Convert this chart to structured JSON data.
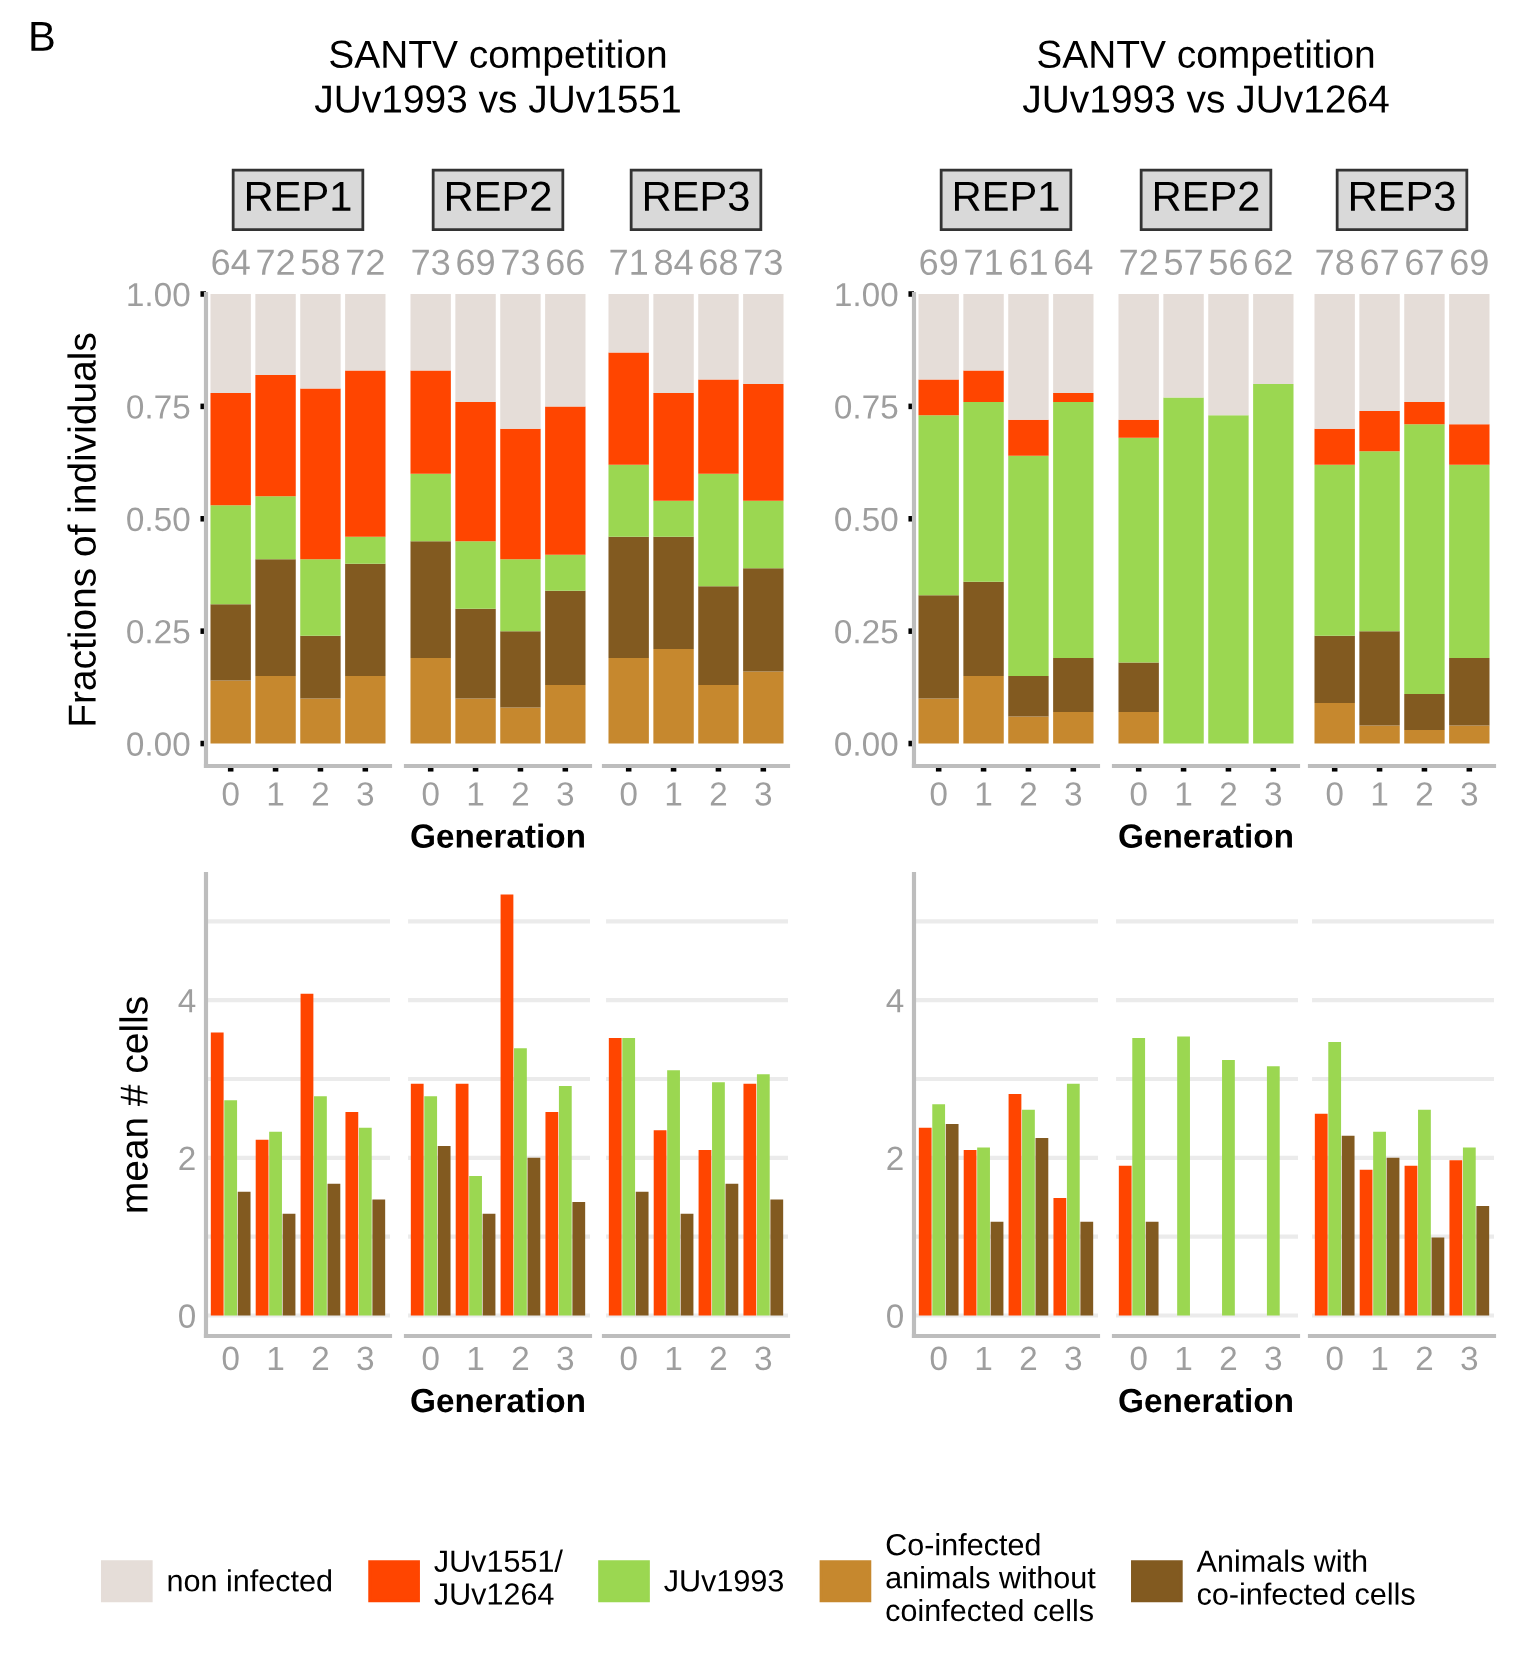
{
  "chart_data": [
    {
      "type": "bar",
      "stacked": true,
      "title": "REP1",
      "subtitle": "SANTV competition\nJUv1993 vs JUv1551",
      "ylabel": "Fractions of individuals",
      "categories": [
        "0",
        "1",
        "2",
        "3"
      ],
      "ylim": [
        -0.05,
        1
      ],
      "yticks": [
        {
          "value": 0,
          "label": "0.00"
        },
        {
          "value": 0.25,
          "label": "0.25"
        },
        {
          "value": 0.5,
          "label": "0.50"
        },
        {
          "value": 0.75,
          "label": "0.75"
        },
        {
          "value": 1,
          "label": "1.00"
        }
      ],
      "legend": "bottom",
      "annotations": [
        "64",
        "72",
        "58",
        "72",
        "B"
      ],
      "series": [
        {
          "name": "Co-infected\nanimals without\ncoinfected cells",
          "color": "#c6882e",
          "values": [
            0.14,
            0.15,
            0.1,
            0.15
          ]
        },
        {
          "name": "Animals with\nco-infected cells",
          "color": "#825a20",
          "values": [
            0.17,
            0.26,
            0.14,
            0.25
          ]
        },
        {
          "name": "JUv1993",
          "color": "#9bd751",
          "values": [
            0.22,
            0.14,
            0.17,
            0.06
          ]
        },
        {
          "name": "JUv1551/\nJUv1264",
          "color": "#ff4500",
          "values": [
            0.25,
            0.27,
            0.38,
            0.37
          ]
        },
        {
          "name": "non infected",
          "color": "#e5ddd8",
          "values": [
            0.22,
            0.18,
            0.21,
            0.17
          ]
        }
      ]
    },
    {
      "type": "bar",
      "stacked": true,
      "title": "REP2",
      "xlabel": "Generation",
      "categories": [
        "0",
        "1",
        "2",
        "3"
      ],
      "ylim": [
        -0.05,
        1
      ],
      "yticks": [
        0,
        0.25,
        0.5,
        0.75,
        1
      ],
      "tick_labels": "x",
      "annotations": [
        "73",
        "69",
        "73",
        "66"
      ],
      "series": [
        {
          "color": "#c6882e",
          "values": [
            0.19,
            0.1,
            0.08,
            0.13
          ]
        },
        {
          "color": "#825a20",
          "values": [
            0.26,
            0.2,
            0.17,
            0.21
          ]
        },
        {
          "color": "#9bd751",
          "values": [
            0.15,
            0.15,
            0.16,
            0.08
          ]
        },
        {
          "color": "#ff4500",
          "values": [
            0.23,
            0.31,
            0.29,
            0.33
          ]
        },
        {
          "color": "#e5ddd8",
          "values": [
            0.17,
            0.24,
            0.3,
            0.25
          ]
        }
      ]
    },
    {
      "type": "bar",
      "stacked": true,
      "title": "REP3",
      "categories": [
        "0",
        "1",
        "2",
        "3"
      ],
      "ylim": [
        -0.05,
        1
      ],
      "yticks": [
        0,
        0.25,
        0.5,
        0.75,
        1
      ],
      "tick_labels": "x",
      "annotations": [
        "71",
        "84",
        "68",
        "73"
      ],
      "series": [
        {
          "color": "#c6882e",
          "values": [
            0.19,
            0.21,
            0.13,
            0.16
          ]
        },
        {
          "color": "#825a20",
          "values": [
            0.27,
            0.25,
            0.22,
            0.23
          ]
        },
        {
          "color": "#9bd751",
          "values": [
            0.16,
            0.08,
            0.25,
            0.15
          ]
        },
        {
          "color": "#ff4500",
          "values": [
            0.25,
            0.24,
            0.21,
            0.26
          ]
        },
        {
          "color": "#e5ddd8",
          "values": [
            0.13,
            0.22,
            0.19,
            0.2
          ]
        }
      ]
    },
    {
      "type": "bar",
      "stacked": true,
      "title": "REP1",
      "subtitle": "SANTV competition\nJUv1993 vs JUv1264",
      "categories": [
        "0",
        "1",
        "2",
        "3"
      ],
      "ylim": [
        -0.05,
        1
      ],
      "yticks": [
        {
          "value": 0,
          "label": "0.00"
        },
        {
          "value": 0.25,
          "label": "0.25"
        },
        {
          "value": 0.5,
          "label": "0.50"
        },
        {
          "value": 0.75,
          "label": "0.75"
        },
        {
          "value": 1,
          "label": "1.00"
        }
      ],
      "annotations": [
        "69",
        "71",
        "61",
        "64"
      ],
      "series": [
        {
          "color": "#c6882e",
          "values": [
            0.1,
            0.15,
            0.06,
            0.07
          ]
        },
        {
          "color": "#825a20",
          "values": [
            0.23,
            0.21,
            0.09,
            0.12
          ]
        },
        {
          "color": "#9bd751",
          "values": [
            0.4,
            0.4,
            0.49,
            0.57
          ]
        },
        {
          "color": "#ff4500",
          "values": [
            0.08,
            0.07,
            0.08,
            0.02
          ]
        },
        {
          "color": "#e5ddd8",
          "values": [
            0.19,
            0.17,
            0.28,
            0.22
          ]
        }
      ]
    },
    {
      "type": "bar",
      "stacked": true,
      "title": "REP2",
      "xlabel": "Generation",
      "categories": [
        "0",
        "1",
        "2",
        "3"
      ],
      "ylim": [
        -0.05,
        1
      ],
      "yticks": [
        0,
        0.25,
        0.5,
        0.75,
        1
      ],
      "tick_labels": "x",
      "annotations": [
        "72",
        "57",
        "56",
        "62"
      ],
      "series": [
        {
          "color": "#c6882e",
          "values": [
            0.07,
            0,
            0,
            0
          ]
        },
        {
          "color": "#825a20",
          "values": [
            0.11,
            0,
            0,
            0
          ]
        },
        {
          "color": "#9bd751",
          "values": [
            0.5,
            0.77,
            0.73,
            0.8
          ]
        },
        {
          "color": "#ff4500",
          "values": [
            0.04,
            0,
            0,
            0
          ]
        },
        {
          "color": "#e5ddd8",
          "values": [
            0.28,
            0.23,
            0.27,
            0.2
          ]
        }
      ]
    },
    {
      "type": "bar",
      "stacked": true,
      "title": "REP3",
      "categories": [
        "0",
        "1",
        "2",
        "3"
      ],
      "ylim": [
        -0.05,
        1
      ],
      "yticks": [
        0,
        0.25,
        0.5,
        0.75,
        1
      ],
      "tick_labels": "x",
      "annotations": [
        "78",
        "67",
        "67",
        "69"
      ],
      "series": [
        {
          "color": "#c6882e",
          "values": [
            0.09,
            0.04,
            0.03,
            0.04
          ]
        },
        {
          "color": "#825a20",
          "values": [
            0.15,
            0.21,
            0.08,
            0.15
          ]
        },
        {
          "color": "#9bd751",
          "values": [
            0.38,
            0.4,
            0.6,
            0.43
          ]
        },
        {
          "color": "#ff4500",
          "values": [
            0.08,
            0.09,
            0.05,
            0.09
          ]
        },
        {
          "color": "#e5ddd8",
          "values": [
            0.3,
            0.26,
            0.24,
            0.29
          ]
        }
      ]
    },
    {
      "type": "bar",
      "ylabel": "mean # cells",
      "categories": [
        "0",
        "1",
        "2",
        "3"
      ],
      "ylim": [
        -0.26,
        5.6
      ],
      "yticks": [
        0,
        {
          "value": 1,
          "label": null
        },
        2,
        {
          "value": 3,
          "label": null
        },
        4,
        {
          "value": 5,
          "label": null
        }
      ],
      "grid": "y",
      "series": [
        {
          "color": "#ff4500",
          "values": [
            3.59,
            2.23,
            4.08,
            2.58
          ]
        },
        {
          "color": "#9bd751",
          "values": [
            2.73,
            2.33,
            2.78,
            2.38
          ]
        },
        {
          "color": "#825a20",
          "values": [
            1.57,
            1.29,
            1.67,
            1.47
          ]
        }
      ]
    },
    {
      "type": "bar",
      "xlabel": "Generation",
      "categories": [
        "0",
        "1",
        "2",
        "3"
      ],
      "ylim": [
        -0.26,
        5.6
      ],
      "yticks": [
        0,
        {
          "value": 1,
          "label": null
        },
        2,
        {
          "value": 3,
          "label": null
        },
        4,
        {
          "value": 5,
          "label": null
        }
      ],
      "grid": "y",
      "tick_labels": "x",
      "series": [
        {
          "color": "#ff4500",
          "values": [
            2.94,
            2.94,
            5.34,
            2.58
          ]
        },
        {
          "color": "#9bd751",
          "values": [
            2.78,
            1.77,
            3.39,
            2.91
          ]
        },
        {
          "color": "#825a20",
          "values": [
            2.15,
            1.29,
            2.0,
            1.44
          ]
        }
      ]
    },
    {
      "type": "bar",
      "categories": [
        "0",
        "1",
        "2",
        "3"
      ],
      "ylim": [
        -0.26,
        5.6
      ],
      "yticks": [
        0,
        {
          "value": 1,
          "label": null
        },
        2,
        {
          "value": 3,
          "label": null
        },
        4,
        {
          "value": 5,
          "label": null
        }
      ],
      "grid": "y",
      "tick_labels": "x",
      "series": [
        {
          "color": "#ff4500",
          "values": [
            3.52,
            2.35,
            2.1,
            2.94
          ]
        },
        {
          "color": "#9bd751",
          "values": [
            3.52,
            3.11,
            2.96,
            3.06
          ]
        },
        {
          "color": "#825a20",
          "values": [
            1.57,
            1.29,
            1.67,
            1.47
          ]
        }
      ]
    },
    {
      "type": "bar",
      "categories": [
        "0",
        "1",
        "2",
        "3"
      ],
      "ylim": [
        -0.26,
        5.6
      ],
      "yticks": [
        0,
        {
          "value": 1,
          "label": null
        },
        2,
        {
          "value": 3,
          "label": null
        },
        4,
        {
          "value": 5,
          "label": null
        }
      ],
      "grid": "y",
      "series": [
        {
          "color": "#ff4500",
          "values": [
            2.38,
            2.1,
            2.81,
            1.49
          ]
        },
        {
          "color": "#9bd751",
          "values": [
            2.68,
            2.13,
            2.61,
            2.94
          ]
        },
        {
          "color": "#825a20",
          "values": [
            2.43,
            1.19,
            2.25,
            1.19
          ]
        }
      ]
    },
    {
      "type": "bar",
      "xlabel": "Generation",
      "categories": [
        "0",
        "1",
        "2",
        "3"
      ],
      "ylim": [
        -0.26,
        5.6
      ],
      "yticks": [
        0,
        {
          "value": 1,
          "label": null
        },
        2,
        {
          "value": 3,
          "label": null
        },
        4,
        {
          "value": 5,
          "label": null
        }
      ],
      "grid": "y",
      "tick_labels": "x",
      "series": [
        {
          "color": "#ff4500",
          "values": [
            1.9,
            null,
            null,
            null
          ]
        },
        {
          "color": "#9bd751",
          "values": [
            3.52,
            3.54,
            3.24,
            3.16
          ]
        },
        {
          "color": "#825a20",
          "values": [
            1.19,
            null,
            null,
            null
          ]
        }
      ]
    },
    {
      "type": "bar",
      "categories": [
        "0",
        "1",
        "2",
        "3"
      ],
      "ylim": [
        -0.26,
        5.6
      ],
      "yticks": [
        0,
        {
          "value": 1,
          "label": null
        },
        2,
        {
          "value": 3,
          "label": null
        },
        4,
        {
          "value": 5,
          "label": null
        }
      ],
      "grid": "y",
      "tick_labels": "x",
      "series": [
        {
          "color": "#ff4500",
          "values": [
            2.56,
            1.85,
            1.9,
            1.97
          ]
        },
        {
          "color": "#9bd751",
          "values": [
            3.47,
            2.33,
            2.61,
            2.13
          ]
        },
        {
          "color": "#825a20",
          "values": [
            2.28,
            2.0,
            0.99,
            1.39
          ]
        }
      ]
    }
  ]
}
